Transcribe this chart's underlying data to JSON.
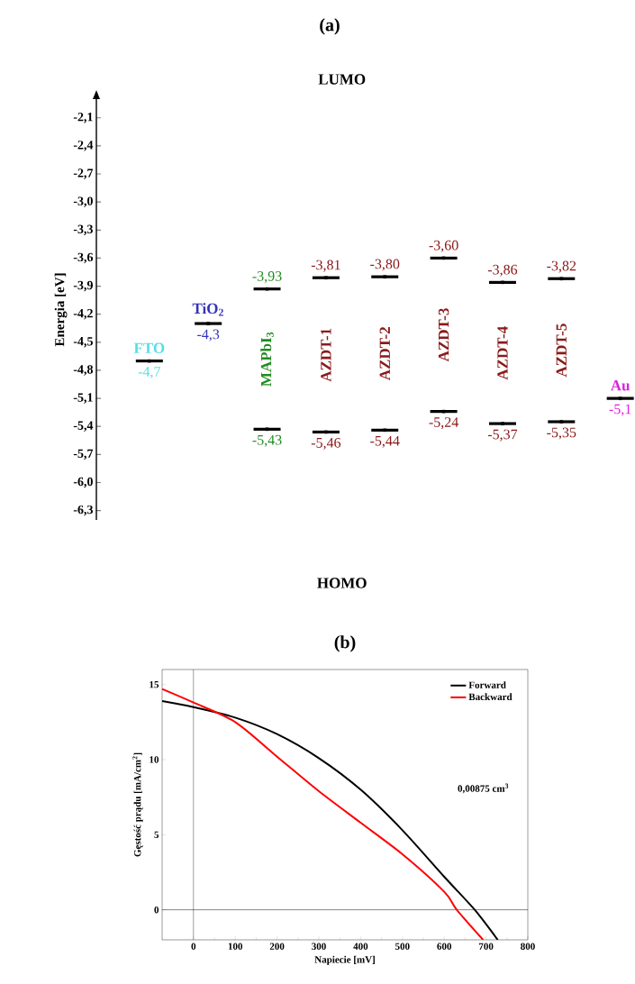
{
  "chart_data": [
    {
      "type": "scatter",
      "title": "(a)",
      "ylabel": "Energia [eV]",
      "marker": "square",
      "categories": [
        "FTO",
        "TiO$_{2}$",
        "MAPbI$_{3}$",
        "AZDT-1",
        "AZDT-2",
        "AZDT-3",
        "AZDT-4",
        "AZDT-5",
        "Au"
      ],
      "colors": [
        "#55dde5",
        "#3333bb",
        "#228b22",
        "#8b1a1a",
        "#8b1a1a",
        "#8b1a1a",
        "#8b1a1a",
        "#8b1a1a",
        "#dd22dd"
      ],
      "ylim": [
        -6.4,
        -1.9
      ],
      "annotations": [
        "LUMO",
        "HOMO"
      ],
      "yticks": [
        {
          "value": -2.1,
          "label": "-2,1"
        },
        {
          "value": -2.4,
          "label": "-2,4"
        },
        {
          "value": -2.7,
          "label": "-2,7"
        },
        {
          "value": -3.0,
          "label": "-3,0"
        },
        {
          "value": -3.3,
          "label": "-3,3"
        },
        {
          "value": -3.6,
          "label": "-3,6"
        },
        {
          "value": -3.9,
          "label": "-3,9"
        },
        {
          "value": -4.2,
          "label": "-4,2"
        },
        {
          "value": -4.5,
          "label": "-4,5"
        },
        {
          "value": -4.8,
          "label": "-4,8"
        },
        {
          "value": -5.1,
          "label": "-5,1"
        },
        {
          "value": -5.4,
          "label": "-5,4"
        },
        {
          "value": -5.7,
          "label": "-5,7"
        },
        {
          "value": -6.0,
          "label": "-6,0"
        },
        {
          "value": -6.3,
          "label": "-6,3"
        }
      ],
      "series": [
        {
          "color": "#000000",
          "values": [
            null,
            null,
            -3.93,
            -3.81,
            -3.8,
            -3.6,
            -3.86,
            -3.82,
            null
          ],
          "value_labels": [
            null,
            null,
            "-3,93",
            "-3,81",
            "-3,80",
            "-3,60",
            "-3,86",
            "-3,82",
            null
          ]
        },
        {
          "color": "#000000",
          "values": [
            null,
            null,
            -5.43,
            -5.46,
            -5.44,
            -5.24,
            -5.37,
            -5.35,
            null
          ],
          "value_labels": [
            null,
            null,
            "-5,43",
            "-5,46",
            "-5,44",
            "-5,24",
            "-5,37",
            "-5,35",
            null
          ]
        },
        {
          "color": "#000000",
          "values": [
            -4.7,
            -4.3,
            null,
            null,
            null,
            null,
            null,
            null,
            -5.1
          ],
          "value_labels": [
            "-4,7",
            "-4,3",
            null,
            null,
            null,
            null,
            null,
            null,
            "-5,1"
          ]
        }
      ]
    },
    {
      "type": "line",
      "title": "(b)",
      "xlabel": "Napiecie [mV]",
      "ylabel": "Gęstość prądu [mA/cm$^{2}$]",
      "xlim": [
        -75,
        800
      ],
      "ylim": [
        -2,
        16
      ],
      "xticks": [
        0,
        100,
        200,
        300,
        400,
        500,
        600,
        700,
        800
      ],
      "yticks": [
        0,
        5,
        10,
        15
      ],
      "legend": "top right",
      "ref_lines": [
        {
          "axis": "x",
          "value": 0,
          "color": "#333333"
        },
        {
          "axis": "y",
          "value": 0,
          "color": "#000000"
        }
      ],
      "annotations": [
        "0,00875 cm$^{3}$"
      ],
      "series": [
        {
          "name": "Forward",
          "color": "#000000",
          "x": [
            -75,
            0,
            100,
            200,
            300,
            400,
            500,
            600,
            673,
            728
          ],
          "values": [
            13.9,
            13.5,
            12.8,
            11.7,
            10.1,
            8.0,
            5.3,
            2.2,
            0,
            -2
          ]
        },
        {
          "name": "Backward",
          "color": "#ff0000",
          "x": [
            -75,
            0,
            100,
            200,
            300,
            400,
            500,
            600,
            630,
            693
          ],
          "values": [
            14.7,
            13.8,
            12.5,
            10.2,
            7.9,
            5.8,
            3.7,
            1.2,
            0,
            -2
          ]
        }
      ]
    }
  ]
}
